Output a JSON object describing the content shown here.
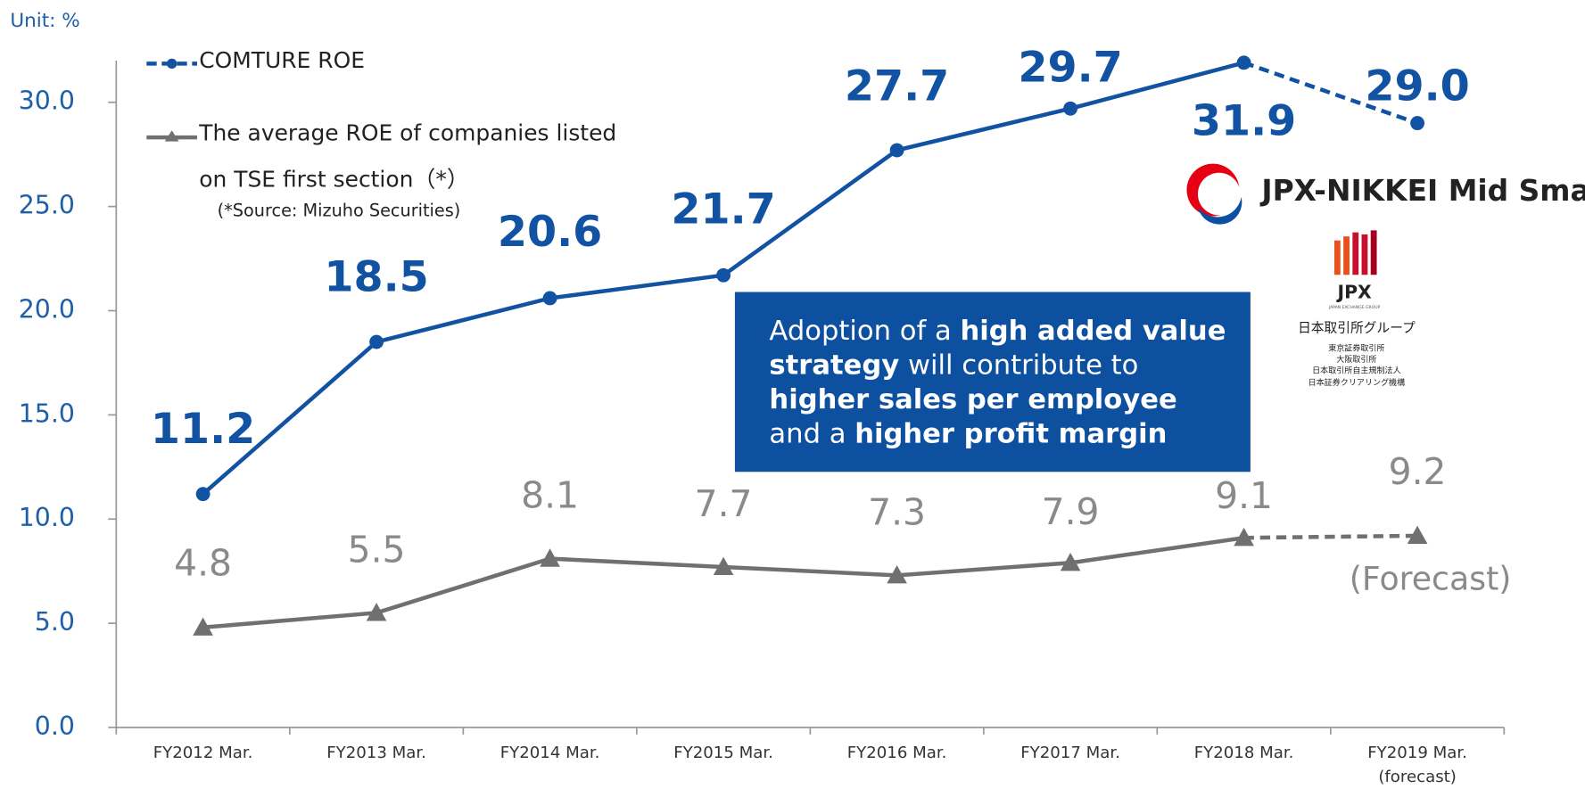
{
  "unit_label": "Unit: %",
  "chart_data": {
    "type": "line",
    "categories": [
      "FY2012 Mar.",
      "FY2013 Mar.",
      "FY2014 Mar.",
      "FY2015 Mar.",
      "FY2016 Mar.",
      "FY2017 Mar.",
      "FY2018 Mar.",
      "FY2019 Mar.\n(forecast)"
    ],
    "series": [
      {
        "name": "COMTURE ROE",
        "color": "#1252a3",
        "marker": "circle",
        "dashed_from": 6,
        "values": [
          11.2,
          18.5,
          20.6,
          21.7,
          27.7,
          29.7,
          31.9,
          29.0
        ],
        "value_labels": [
          "11.2",
          "18.5",
          "20.6",
          "21.7",
          "27.7",
          "29.7",
          "31.9",
          "29.0"
        ]
      },
      {
        "name": "The average ROE of companies listed on TSE first section（*）",
        "color": "#707070",
        "marker": "triangle",
        "dashed_from": 6,
        "values": [
          4.8,
          5.5,
          8.1,
          7.7,
          7.3,
          7.9,
          9.1,
          9.2
        ],
        "value_labels": [
          "4.8",
          "5.5",
          "8.1",
          "7.7",
          "7.3",
          "7.9",
          "9.1",
          "9.2"
        ]
      }
    ],
    "ylim": [
      0,
      32
    ],
    "yticks": [
      {
        "value": 0,
        "label": "0.0"
      },
      {
        "value": 5,
        "label": "5.0"
      },
      {
        "value": 10,
        "label": "10.0"
      },
      {
        "value": 15,
        "label": "15.0"
      },
      {
        "value": 20,
        "label": "20.0"
      },
      {
        "value": 25,
        "label": "25.0"
      },
      {
        "value": 30,
        "label": "30.0"
      }
    ],
    "source_note": "(*Source: Mizuho Securities)",
    "forecast_note": "(Forecast)",
    "callout": [
      {
        "text": "Adoption of a ",
        "bold": false
      },
      {
        "text": "high added value strategy",
        "bold": true
      },
      {
        "text": " will contribute to ",
        "bold": false
      },
      {
        "text": "higher sales per employee",
        "bold": true
      },
      {
        "text": " and a ",
        "bold": false
      },
      {
        "text": "higher profit margin",
        "bold": true
      }
    ]
  },
  "logos": {
    "index_name": "JPX-NIKKEI Mid Small",
    "jpx": "JPX",
    "jpx_sub": "JAPAN EXCHANGE GROUP",
    "group_name": "日本取引所グループ",
    "members": [
      "東京証券取引所",
      "大阪取引所",
      "日本取引所自主規制法人",
      "日本証券クリアリング機構"
    ]
  }
}
